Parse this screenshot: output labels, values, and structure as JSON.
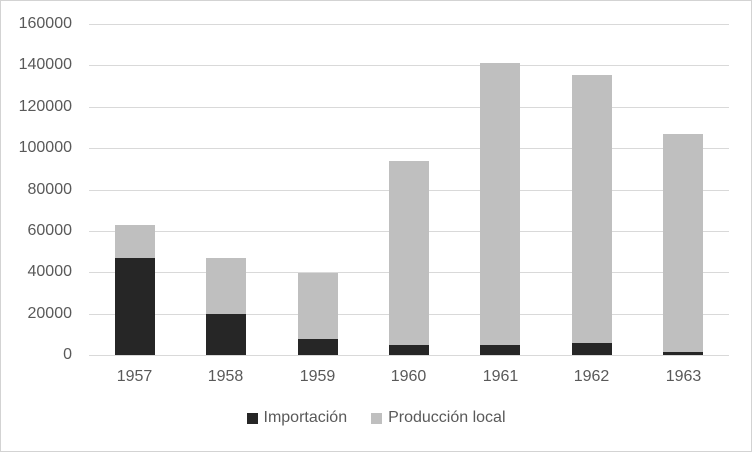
{
  "window": {
    "background_color": "#ffffff",
    "border_color": "#d3d3d3"
  },
  "chart_data": {
    "type": "bar",
    "stacked": true,
    "title": "",
    "xlabel": "",
    "ylabel": "",
    "categories": [
      "1957",
      "1958",
      "1959",
      "1960",
      "1961",
      "1962",
      "1963"
    ],
    "series": [
      {
        "name": "Importación",
        "color": "#262626",
        "values": [
          47000,
          20000,
          7500,
          5000,
          5000,
          6000,
          1500
        ]
      },
      {
        "name": "Producción local",
        "color": "#bfbfbf",
        "values": [
          16000,
          27000,
          32000,
          89000,
          136000,
          129500,
          105500
        ]
      }
    ],
    "totals": [
      63000,
      47000,
      39500,
      94000,
      141000,
      135500,
      107000
    ],
    "ylim": [
      0,
      160000
    ],
    "yticks": [
      "0",
      "20000",
      "40000",
      "60000",
      "80000",
      "100000",
      "120000",
      "140000",
      "160000"
    ],
    "ytick_values": [
      0,
      20000,
      40000,
      60000,
      80000,
      100000,
      120000,
      140000,
      160000
    ],
    "grid": true,
    "gridline_color": "#d9d9d9",
    "axis_line_color": "#d9d9d9",
    "axis_text_color": "#595959",
    "legend_position": "bottom",
    "legend_entries": [
      "Importación",
      "Producción local"
    ]
  }
}
